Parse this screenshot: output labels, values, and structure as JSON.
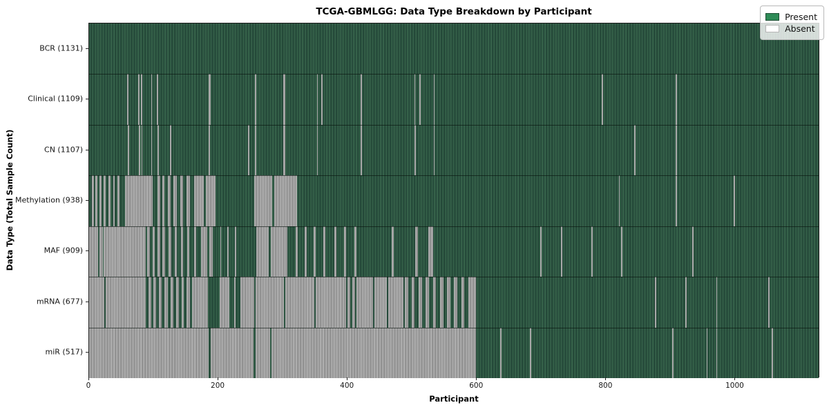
{
  "title": "TCGA-GBMLGG: Data Type Breakdown by Participant",
  "x_axis": {
    "label": "Participant",
    "ticks": [
      0,
      200,
      400,
      600,
      800,
      1000
    ]
  },
  "y_axis": {
    "label": "Data Type (Total Sample Count)"
  },
  "legend": {
    "position": "upper right",
    "items": [
      {
        "label": "Present",
        "color": "#2e8b57"
      },
      {
        "label": "Absent",
        "color": "#ffffff"
      }
    ]
  },
  "colors": {
    "present": "#2e8b57",
    "absent": "#ffffff",
    "present_rendered": "#2d5444",
    "absent_rendered": "#9c9c9c",
    "background": "#ffffff"
  },
  "chart_data": {
    "type": "heatmap",
    "title": "TCGA-GBMLGG: Data Type Breakdown by Participant",
    "xlabel": "Participant",
    "ylabel": "Data Type (Total Sample Count)",
    "x_range": [
      0,
      1131
    ],
    "n_participants": 1131,
    "grid": false,
    "legend_entries": [
      "Present",
      "Absent"
    ],
    "rows": [
      {
        "name": "bcr",
        "label": "BCR (1131)",
        "data_type": "BCR",
        "present_count": 1131,
        "absent_ranges": []
      },
      {
        "name": "clinical",
        "label": "Clinical (1109)",
        "data_type": "Clinical",
        "present_count": 1109,
        "absent_ranges": [
          [
            59,
            61
          ],
          [
            76,
            78
          ],
          [
            80,
            82
          ],
          [
            96,
            98
          ],
          [
            105,
            107
          ],
          [
            185,
            188
          ],
          [
            257,
            259
          ],
          [
            301,
            304
          ],
          [
            353,
            355
          ],
          [
            360,
            362
          ],
          [
            421,
            423
          ],
          [
            504,
            506
          ],
          [
            512,
            514
          ],
          [
            534,
            536
          ],
          [
            795,
            797
          ],
          [
            909,
            911
          ]
        ]
      },
      {
        "name": "cn",
        "label": "CN (1107)",
        "data_type": "CN",
        "present_count": 1107,
        "absent_ranges": [
          [
            60,
            62
          ],
          [
            77,
            79
          ],
          [
            81,
            83
          ],
          [
            96,
            98
          ],
          [
            106,
            108
          ],
          [
            125,
            127
          ],
          [
            185,
            187
          ],
          [
            246,
            248
          ],
          [
            257,
            259
          ],
          [
            301,
            304
          ],
          [
            353,
            355
          ],
          [
            421,
            423
          ],
          [
            504,
            507
          ],
          [
            534,
            536
          ],
          [
            845,
            847
          ],
          [
            909,
            911
          ]
        ]
      },
      {
        "name": "methylation",
        "label": "Methylation (938)",
        "data_type": "Methylation",
        "present_count": 938,
        "absent_ranges": [
          [
            4,
            7
          ],
          [
            10,
            13
          ],
          [
            16,
            19
          ],
          [
            23,
            26
          ],
          [
            30,
            33
          ],
          [
            37,
            40
          ],
          [
            44,
            47
          ],
          [
            56,
            99
          ],
          [
            106,
            110
          ],
          [
            113,
            117
          ],
          [
            122,
            126
          ],
          [
            131,
            136
          ],
          [
            141,
            146
          ],
          [
            151,
            156
          ],
          [
            163,
            178
          ],
          [
            181,
            196
          ],
          [
            256,
            284
          ],
          [
            287,
            322
          ],
          [
            821,
            823
          ],
          [
            909,
            911
          ],
          [
            999,
            1001
          ]
        ]
      },
      {
        "name": "maf",
        "label": "MAF (909)",
        "data_type": "MAF",
        "present_count": 909,
        "absent_ranges": [
          [
            0,
            14
          ],
          [
            16,
            21
          ],
          [
            23,
            46
          ],
          [
            46,
            88
          ],
          [
            90,
            94
          ],
          [
            98,
            102
          ],
          [
            106,
            110
          ],
          [
            114,
            118
          ],
          [
            123,
            127
          ],
          [
            133,
            136
          ],
          [
            142,
            146
          ],
          [
            152,
            155
          ],
          [
            163,
            166
          ],
          [
            174,
            183
          ],
          [
            186,
            192
          ],
          [
            203,
            205
          ],
          [
            214,
            216
          ],
          [
            226,
            228
          ],
          [
            259,
            279
          ],
          [
            282,
            307
          ],
          [
            320,
            323
          ],
          [
            334,
            337
          ],
          [
            348,
            351
          ],
          [
            363,
            366
          ],
          [
            380,
            383
          ],
          [
            395,
            398
          ],
          [
            411,
            414
          ],
          [
            469,
            472
          ],
          [
            505,
            510
          ],
          [
            526,
            533
          ],
          [
            699,
            701
          ],
          [
            732,
            734
          ],
          [
            779,
            781
          ],
          [
            825,
            827
          ],
          [
            935,
            937
          ]
        ]
      },
      {
        "name": "mrna",
        "label": "mRNA (677)",
        "data_type": "mRNA",
        "present_count": 677,
        "absent_ranges": [
          [
            0,
            24
          ],
          [
            26,
            88
          ],
          [
            92,
            96
          ],
          [
            100,
            104
          ],
          [
            108,
            113
          ],
          [
            117,
            122
          ],
          [
            126,
            131
          ],
          [
            135,
            139
          ],
          [
            143,
            147
          ],
          [
            151,
            156
          ],
          [
            160,
            184
          ],
          [
            202,
            217
          ],
          [
            225,
            227
          ],
          [
            235,
            256
          ],
          [
            258,
            302
          ],
          [
            304,
            349
          ],
          [
            351,
            398
          ],
          [
            401,
            405
          ],
          [
            408,
            412
          ],
          [
            415,
            440
          ],
          [
            442,
            462
          ],
          [
            464,
            487
          ],
          [
            489,
            495
          ],
          [
            500,
            505
          ],
          [
            511,
            516
          ],
          [
            522,
            527
          ],
          [
            533,
            538
          ],
          [
            544,
            549
          ],
          [
            555,
            560
          ],
          [
            566,
            571
          ],
          [
            577,
            582
          ],
          [
            588,
            600
          ],
          [
            877,
            879
          ],
          [
            924,
            926
          ],
          [
            972,
            974
          ],
          [
            1053,
            1055
          ]
        ]
      },
      {
        "name": "mir",
        "label": "miR (517)",
        "data_type": "miR",
        "present_count": 517,
        "absent_ranges": [
          [
            0,
            185
          ],
          [
            188,
            255
          ],
          [
            258,
            281
          ],
          [
            283,
            600
          ],
          [
            637,
            639
          ],
          [
            683,
            685
          ],
          [
            904,
            906
          ],
          [
            957,
            959
          ],
          [
            972,
            974
          ],
          [
            1058,
            1060
          ]
        ]
      }
    ]
  }
}
